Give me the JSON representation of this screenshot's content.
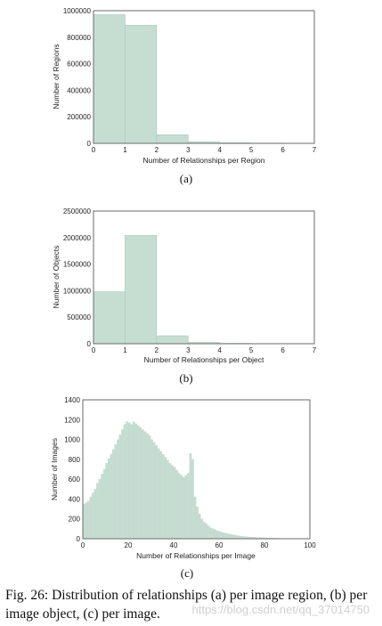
{
  "chart_data": [
    {
      "type": "bar",
      "panel_label": "(a)",
      "xlabel": "Number of Relationships per Region",
      "ylabel": "Number of Regions",
      "xlim": [
        0,
        7
      ],
      "ylim": [
        0,
        1000000
      ],
      "xticks": [
        "0",
        "1",
        "2",
        "3",
        "4",
        "5",
        "6",
        "7"
      ],
      "yticks": [
        "0",
        "200000",
        "400000",
        "600000",
        "800000",
        "1000000"
      ],
      "bin_edges": [
        0,
        1,
        2,
        3,
        4,
        5,
        6,
        7
      ],
      "values": [
        970000,
        890000,
        65000,
        12000,
        4000,
        2000,
        1000
      ],
      "grid": false
    },
    {
      "type": "bar",
      "panel_label": "(b)",
      "xlabel": "Number of Relationships per Object",
      "ylabel": "Number of Objects",
      "xlim": [
        0,
        7
      ],
      "ylim": [
        0,
        2500000
      ],
      "xticks": [
        "0",
        "1",
        "2",
        "3",
        "4",
        "5",
        "6",
        "7"
      ],
      "yticks": [
        "0",
        "500000",
        "1000000",
        "1500000",
        "2000000",
        "2500000"
      ],
      "bin_edges": [
        0,
        1,
        2,
        3,
        4,
        5,
        6,
        7
      ],
      "values": [
        980000,
        2040000,
        150000,
        25000,
        8000,
        3000,
        1000
      ],
      "grid": false
    },
    {
      "type": "bar",
      "panel_label": "(c)",
      "xlabel": "Number of Relationships per Image",
      "ylabel": "Number of Images",
      "xlim": [
        0,
        100
      ],
      "ylim": [
        0,
        1400
      ],
      "xticks": [
        "0",
        "20",
        "40",
        "60",
        "80",
        "100"
      ],
      "yticks": [
        "0",
        "200",
        "400",
        "600",
        "800",
        "1000",
        "1200",
        "1400"
      ],
      "bin_start": 0,
      "bin_width": 1,
      "values": [
        350,
        360,
        380,
        420,
        460,
        500,
        560,
        600,
        650,
        700,
        760,
        810,
        850,
        900,
        950,
        1000,
        1050,
        1100,
        1150,
        1180,
        1170,
        1150,
        1180,
        1160,
        1140,
        1120,
        1100,
        1080,
        1060,
        1040,
        1000,
        970,
        940,
        910,
        880,
        850,
        820,
        790,
        760,
        740,
        720,
        690,
        660,
        640,
        620,
        640,
        660,
        860,
        800,
        420,
        320,
        250,
        200,
        170,
        150,
        130,
        110,
        100,
        90,
        80,
        72,
        65,
        58,
        52,
        47,
        42,
        38,
        34,
        30,
        27,
        24,
        22,
        20,
        18,
        16,
        14,
        13,
        12,
        11,
        10,
        9,
        8,
        7,
        6,
        6,
        5,
        5,
        4,
        4,
        3,
        3,
        3,
        2,
        2,
        2,
        2,
        1,
        1,
        1,
        1
      ],
      "grid": false
    }
  ],
  "colors": {
    "bar_fill": "#c6ddd2",
    "bar_edge": "#a9c8b9",
    "axis": "#6a6a6a"
  },
  "caption": "Fig. 26: Distribution of relationships (a) per image region, (b) per image object, (c) per image.",
  "watermark": "https://blog.csdn.net/qq_37014750"
}
